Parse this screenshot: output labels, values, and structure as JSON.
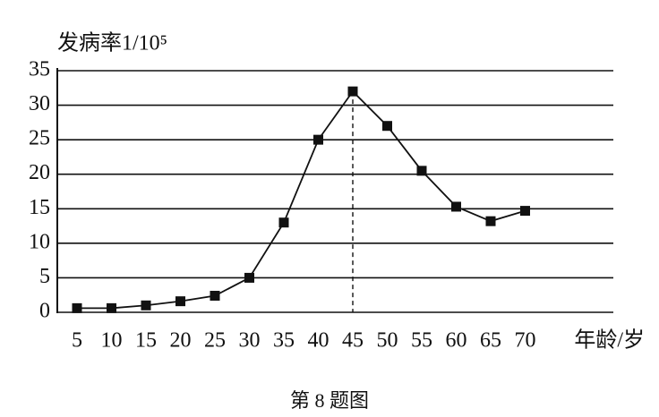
{
  "chart_data": {
    "type": "line",
    "y_label": "发病率1/10⁵",
    "x_label": "年龄/岁",
    "caption": "第 8 题图",
    "categories": [
      "5",
      "10",
      "15",
      "20",
      "25",
      "30",
      "35",
      "40",
      "45",
      "50",
      "55",
      "60",
      "65",
      "70"
    ],
    "values": [
      0.6,
      0.6,
      1,
      1.6,
      2.4,
      5,
      13,
      25,
      32,
      27,
      20.5,
      15.3,
      13.2,
      14.7
    ],
    "color": "#111111",
    "ylim": [
      0,
      35
    ],
    "yticks": [
      0,
      5,
      10,
      15,
      20,
      25,
      30,
      35
    ],
    "grid": true
  }
}
